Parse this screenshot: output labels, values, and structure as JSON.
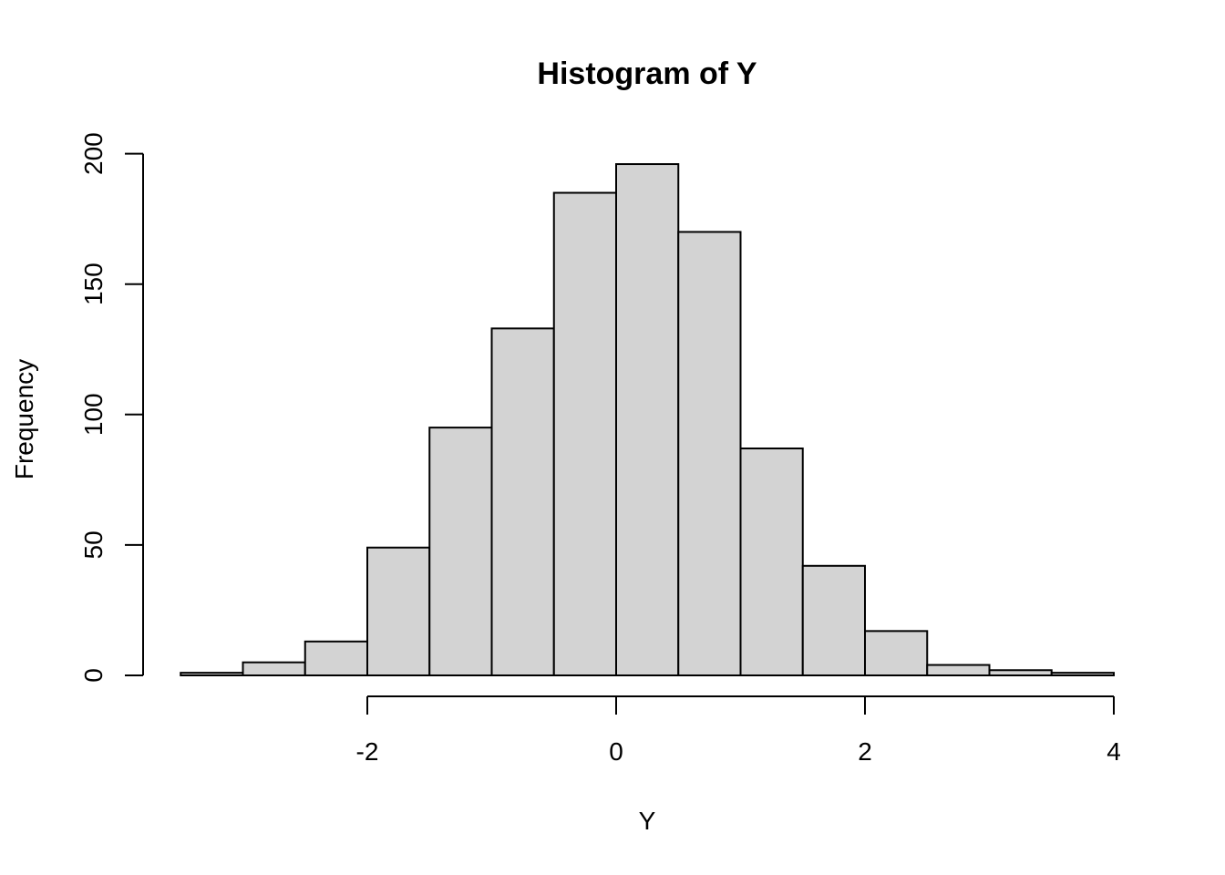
{
  "chart_data": {
    "type": "bar",
    "subtype": "histogram",
    "title": "Histogram of Y",
    "xlabel": "Y",
    "ylabel": "Frequency",
    "bins": [
      {
        "start": -3.5,
        "end": -3.0,
        "count": 1
      },
      {
        "start": -3.0,
        "end": -2.5,
        "count": 5
      },
      {
        "start": -2.5,
        "end": -2.0,
        "count": 13
      },
      {
        "start": -2.0,
        "end": -1.5,
        "count": 49
      },
      {
        "start": -1.5,
        "end": -1.0,
        "count": 95
      },
      {
        "start": -1.0,
        "end": -0.5,
        "count": 133
      },
      {
        "start": -0.5,
        "end": 0.0,
        "count": 185
      },
      {
        "start": 0.0,
        "end": 0.5,
        "count": 196
      },
      {
        "start": 0.5,
        "end": 1.0,
        "count": 170
      },
      {
        "start": 1.0,
        "end": 1.5,
        "count": 87
      },
      {
        "start": 1.5,
        "end": 2.0,
        "count": 42
      },
      {
        "start": 2.0,
        "end": 2.5,
        "count": 17
      },
      {
        "start": 2.5,
        "end": 3.0,
        "count": 4
      },
      {
        "start": 3.0,
        "end": 3.5,
        "count": 2
      },
      {
        "start": 3.5,
        "end": 4.0,
        "count": 1
      }
    ],
    "x_ticks": [
      -2,
      0,
      2,
      4
    ],
    "x_tick_labels": [
      "-2",
      "0",
      "2",
      "4"
    ],
    "y_ticks": [
      0,
      50,
      100,
      150,
      200
    ],
    "y_tick_labels": [
      "0",
      "50",
      "100",
      "150",
      "200"
    ],
    "xlim": [
      -3.5,
      4
    ],
    "ylim": [
      0,
      200
    ],
    "grid": false,
    "legend": false,
    "colors": {
      "bar_fill": "#d3d3d3",
      "bar_stroke": "#000000"
    }
  }
}
